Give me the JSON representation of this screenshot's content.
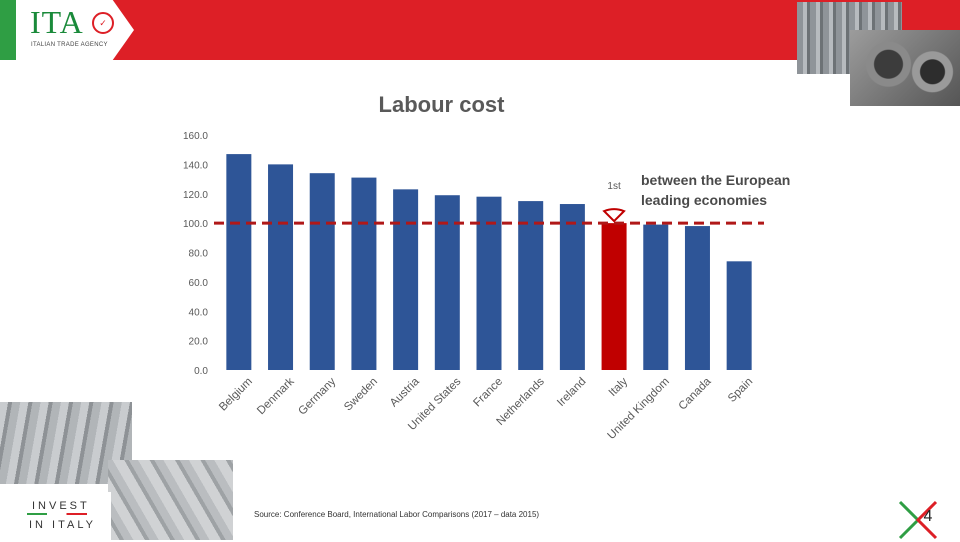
{
  "brand": {
    "logo_text": "ITA",
    "logo_subtitle": "ITALIAN TRADE AGENCY",
    "invest_line1": "INVEST",
    "invest_line2": "IN ITALY",
    "green": "#2f9e44",
    "red": "#dd1f26"
  },
  "annotation": {
    "rank": "1st",
    "text_line1": "between the European",
    "text_line2": "leading economies"
  },
  "footer": {
    "source": "Source: Conference Board, International Labor Comparisons (2017 – data 2015)",
    "page_number": "4"
  },
  "chart_data": {
    "type": "bar",
    "title": "Labour cost",
    "categories": [
      "Belgium",
      "Denmark",
      "Germany",
      "Sweden",
      "Austria",
      "United States",
      "France",
      "Netherlands",
      "Ireland",
      "Italy",
      "United Kingdom",
      "Canada",
      "Spain"
    ],
    "values": [
      147,
      140,
      134,
      131,
      123,
      119,
      118,
      115,
      113,
      100,
      99,
      98,
      74
    ],
    "highlight": "Italy",
    "reference_line": 100,
    "ylim": [
      0,
      160
    ],
    "yticks": [
      "0.0",
      "20.0",
      "40.0",
      "60.0",
      "80.0",
      "100.0",
      "120.0",
      "140.0",
      "160.0"
    ],
    "bar_color": "#2e5597",
    "highlight_color": "#c00000",
    "reference_color": "#b01818",
    "xlabel": "",
    "ylabel": ""
  }
}
